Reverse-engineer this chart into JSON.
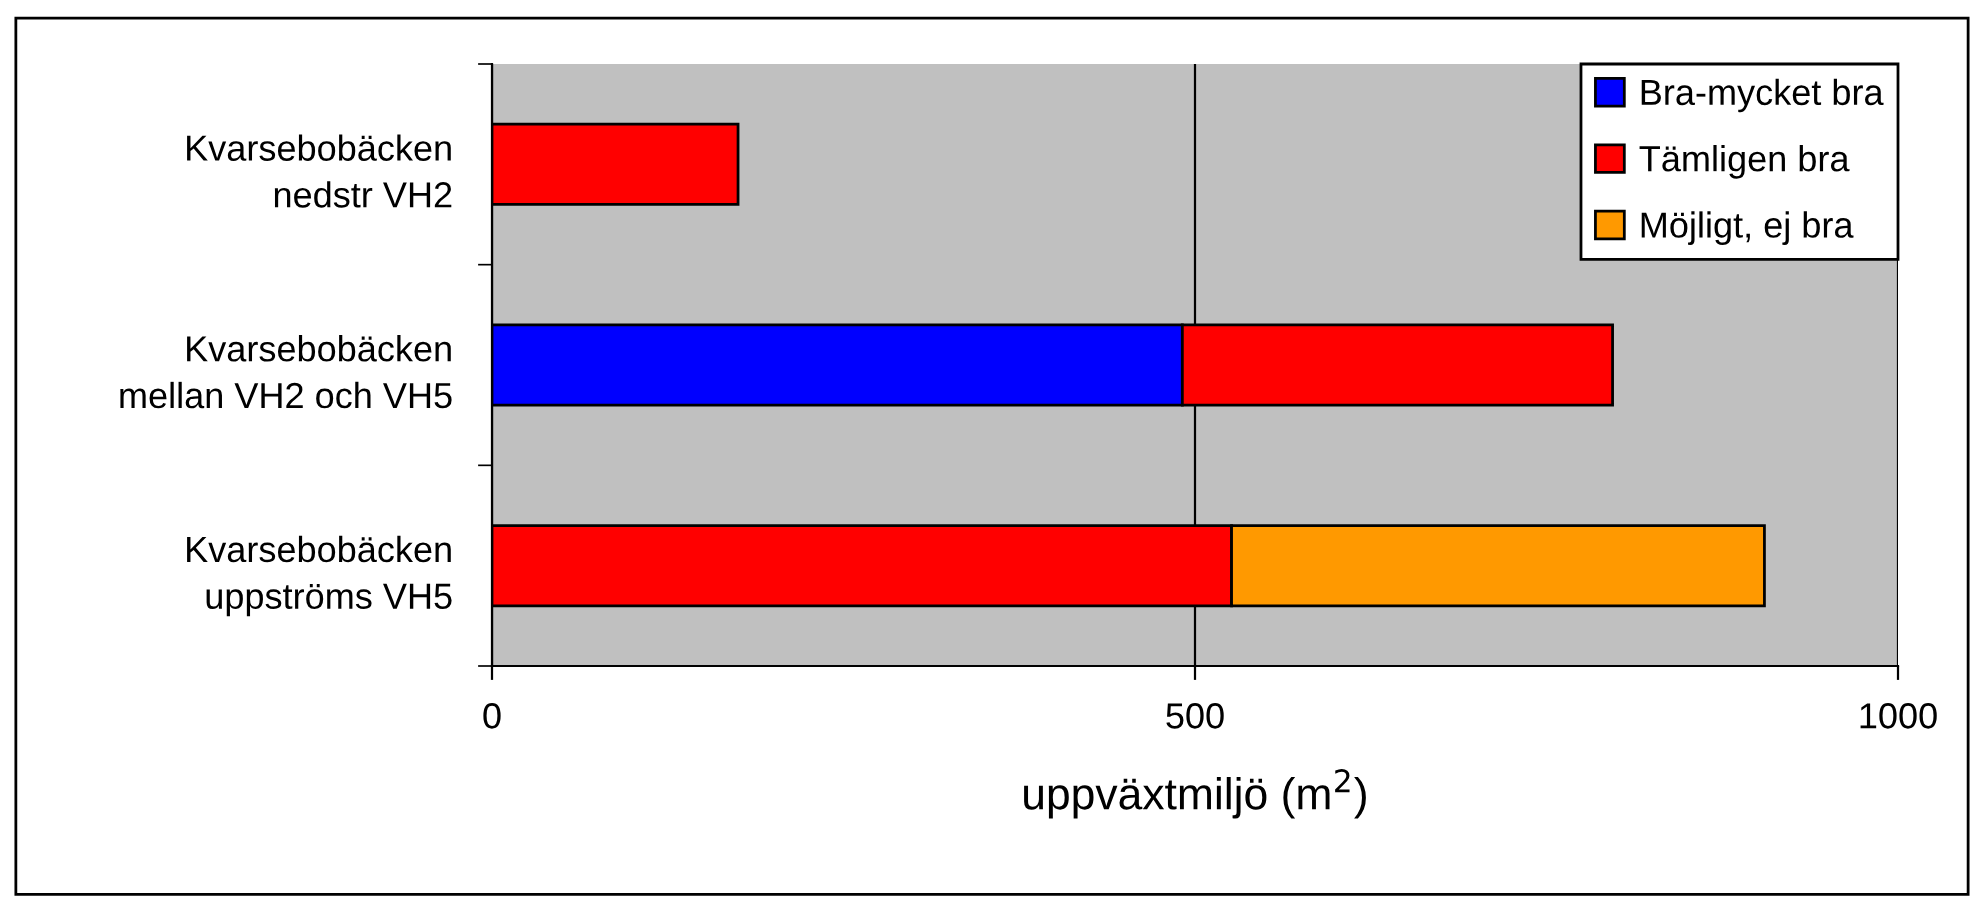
{
  "chart_data": {
    "type": "bar",
    "orientation": "horizontal",
    "stacked": true,
    "categories": [
      "Kvarsebobäcken\nnedstr VH2",
      "Kvarsebobäcken\nmellan VH2 och VH5",
      "Kvarsebobäcken\nuppströms VH5"
    ],
    "series": [
      {
        "name": "Bra-mycket bra",
        "color": "#0000ff",
        "values": [
          null,
          491,
          null
        ]
      },
      {
        "name": "Tämligen bra",
        "color": "#ff0000",
        "values": [
          175,
          306,
          526
        ]
      },
      {
        "name": "Möjligt, ej bra",
        "color": "#ff9900",
        "values": [
          null,
          null,
          379
        ]
      }
    ],
    "xlabel": "uppväxtmiljö (m$^{2}$)",
    "xlim": [
      0,
      1000
    ],
    "xticks": [
      0,
      500,
      1000
    ],
    "grid": "x",
    "legend": "top right"
  }
}
